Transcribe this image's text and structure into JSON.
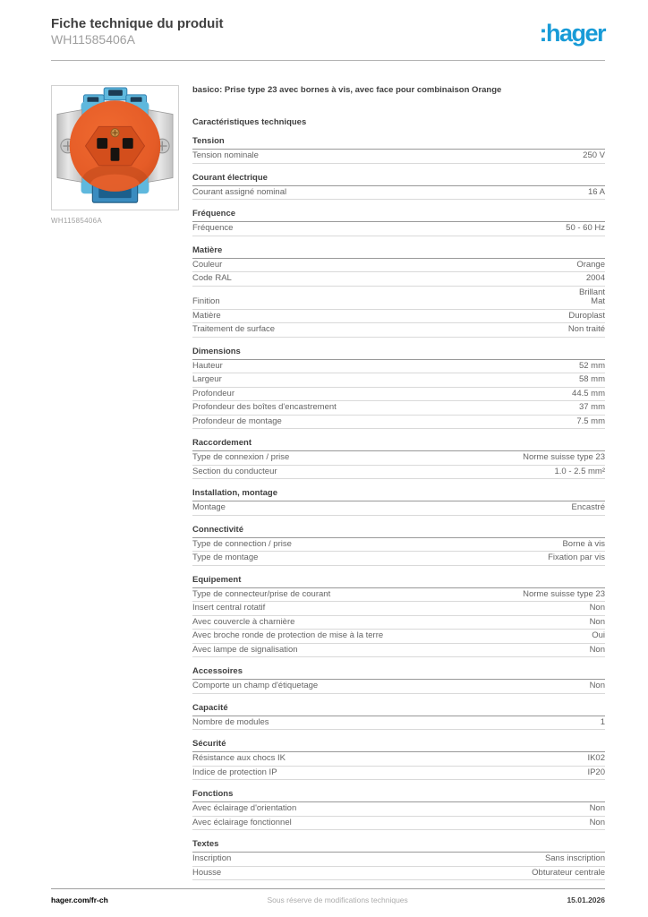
{
  "header": {
    "title": "Fiche technique du produit",
    "product_code": "WH11585406A",
    "logo_text": ":hager"
  },
  "product": {
    "image_caption": "WH11585406A",
    "image_alt_name": "orange-type23-socket-photo",
    "description": "basico: Prise type 23 avec bornes à vis, avec face pour combinaison Orange"
  },
  "characteristics": {
    "heading": "Caractéristiques techniques",
    "sections": [
      {
        "title": "Tension",
        "rows": [
          {
            "label": "Tension nominale",
            "value": "250 V"
          }
        ]
      },
      {
        "title": "Courant électrique",
        "rows": [
          {
            "label": "Courant assigné nominal",
            "value": "16 A"
          }
        ]
      },
      {
        "title": "Fréquence",
        "rows": [
          {
            "label": "Fréquence",
            "value": "50 - 60 Hz"
          }
        ]
      },
      {
        "title": "Matière",
        "rows": [
          {
            "label": "Couleur",
            "value": "Orange"
          },
          {
            "label": "Code RAL",
            "value": "2004"
          },
          {
            "label": "Finition",
            "value": "Brillant\nMat"
          },
          {
            "label": "Matière",
            "value": "Duroplast"
          },
          {
            "label": "Traitement de surface",
            "value": "Non traité"
          }
        ]
      },
      {
        "title": "Dimensions",
        "rows": [
          {
            "label": "Hauteur",
            "value": "52 mm"
          },
          {
            "label": "Largeur",
            "value": "58 mm"
          },
          {
            "label": "Profondeur",
            "value": "44.5 mm"
          },
          {
            "label": "Profondeur des boîtes d'encastrement",
            "value": "37 mm"
          },
          {
            "label": "Profondeur de montage",
            "value": "7.5 mm"
          }
        ]
      },
      {
        "title": "Raccordement",
        "rows": [
          {
            "label": "Type de connexion / prise",
            "value": "Norme suisse type 23"
          },
          {
            "label": "Section du conducteur",
            "value": "1.0 - 2.5 mm²"
          }
        ]
      },
      {
        "title": "Installation, montage",
        "rows": [
          {
            "label": "Montage",
            "value": "Encastré"
          }
        ]
      },
      {
        "title": "Connectivité",
        "rows": [
          {
            "label": "Type de connection / prise",
            "value": "Borne à vis"
          },
          {
            "label": "Type de montage",
            "value": "Fixation par vis"
          }
        ]
      },
      {
        "title": "Equipement",
        "rows": [
          {
            "label": "Type de connecteur/prise de courant",
            "value": "Norme suisse type 23"
          },
          {
            "label": "Insert central rotatif",
            "value": "Non"
          },
          {
            "label": "Avec couvercle à charnière",
            "value": "Non"
          },
          {
            "label": "Avec broche ronde de protection de mise à la terre",
            "value": "Oui"
          },
          {
            "label": "Avec lampe de signalisation",
            "value": "Non"
          }
        ]
      },
      {
        "title": "Accessoires",
        "rows": [
          {
            "label": "Comporte un champ d'étiquetage",
            "value": "Non"
          }
        ]
      },
      {
        "title": "Capacité",
        "rows": [
          {
            "label": "Nombre de modules",
            "value": "1"
          }
        ]
      },
      {
        "title": "Sécurité",
        "rows": [
          {
            "label": "Résistance aux chocs IK",
            "value": "IK02"
          },
          {
            "label": "Indice de protection IP",
            "value": "IP20"
          }
        ]
      },
      {
        "title": "Fonctions",
        "rows": [
          {
            "label": "Avec éclairage d'orientation",
            "value": "Non"
          },
          {
            "label": "Avec éclairage fonctionnel",
            "value": "Non"
          }
        ]
      },
      {
        "title": "Textes",
        "rows": [
          {
            "label": "Inscription",
            "value": "Sans inscription"
          },
          {
            "label": "Housse",
            "value": "Obturateur centrale"
          }
        ]
      }
    ]
  },
  "footer": {
    "website": "hager.com/fr-ch",
    "disclaimer": "Sous réserve de modifications techniques",
    "date": "15.01.2026"
  },
  "colors": {
    "brand_blue": "#189bd7",
    "product_orange": "#e55c27",
    "recess_orange": "#d34e1c",
    "frame_blue": "#5fb8dd",
    "frame_blue_dark": "#2f7fb0"
  }
}
